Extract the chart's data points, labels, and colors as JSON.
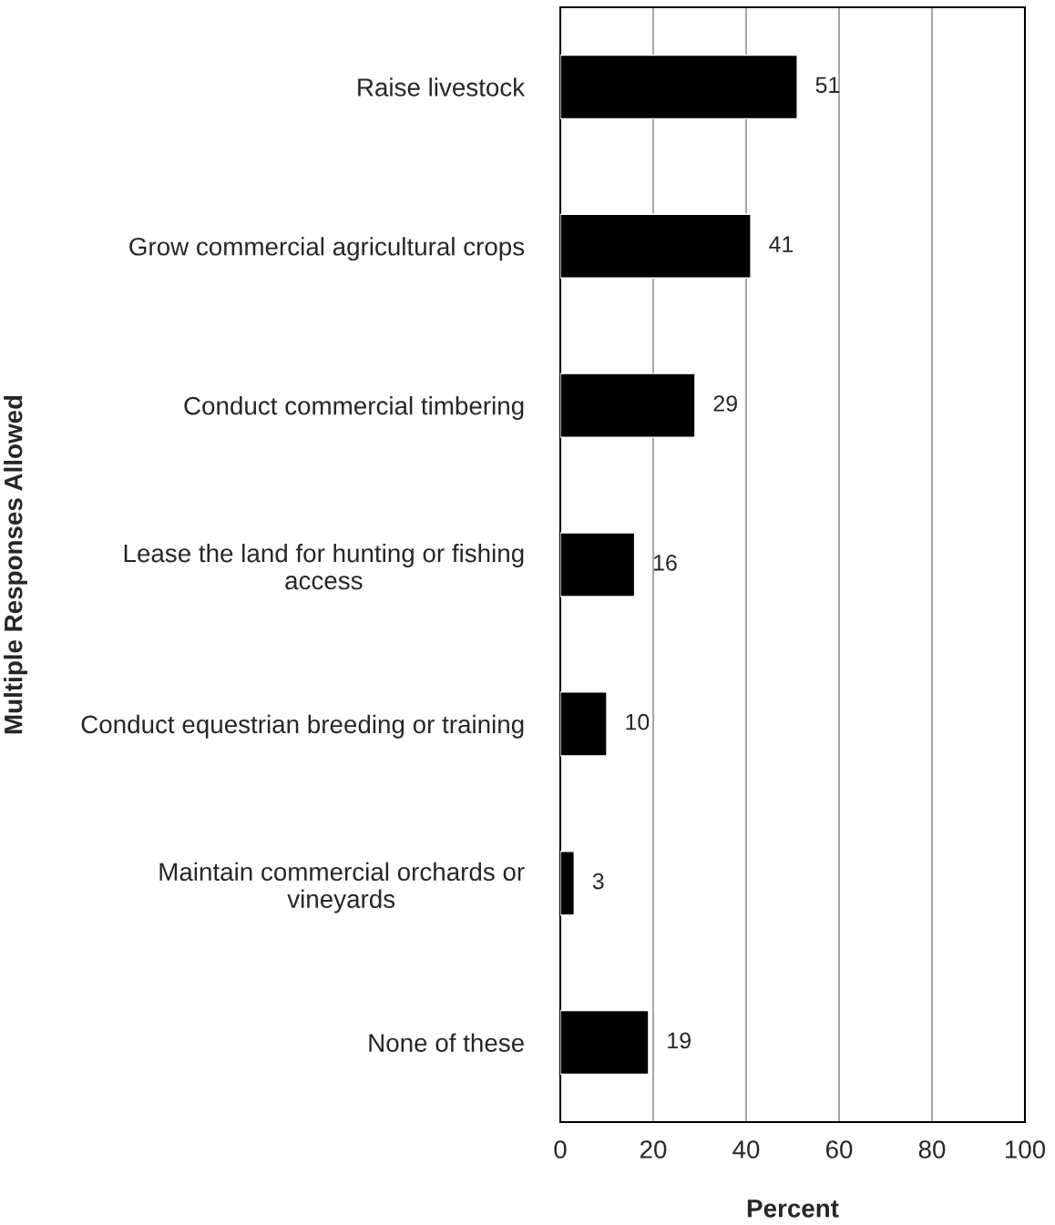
{
  "chart_data": {
    "type": "bar",
    "orientation": "horizontal",
    "categories": [
      "Raise livestock",
      "Grow commercial agricultural crops",
      "Conduct commercial timbering",
      "Lease the land for hunting or fishing\naccess",
      "Conduct equestrian breeding or training",
      "Maintain commercial orchards or\nvineyards",
      "None of these"
    ],
    "values": [
      51,
      41,
      29,
      16,
      10,
      3,
      19
    ],
    "color": "#000000",
    "xlim": [
      0,
      100
    ],
    "xticks": [
      0,
      20,
      40,
      60,
      80,
      100
    ],
    "xlabel": "Percent",
    "ylabel": "Multiple Responses Allowed",
    "grid": "x",
    "data_labels": true,
    "legend": false
  }
}
